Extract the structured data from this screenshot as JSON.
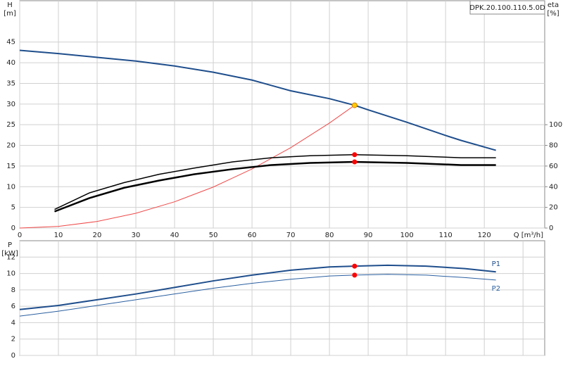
{
  "chart_data": [
    {
      "type": "line",
      "model": "DPK.20.100.110.5.0D",
      "ylabel": "H",
      "yunit": "[m]",
      "y2label": "eta",
      "y2unit": "[%]",
      "xlabel": "Q [m³/h]",
      "xlim": [
        0,
        135.6
      ],
      "xticks": [
        0,
        10,
        20,
        30,
        40,
        50,
        60,
        70,
        80,
        90,
        100,
        110,
        120
      ],
      "xtick_labels": true,
      "ylim": [
        0,
        55
      ],
      "yticks": [
        0,
        5,
        10,
        15,
        20,
        25,
        30,
        35,
        40,
        45
      ],
      "y2lim": [
        0,
        220
      ],
      "y2ticks": [
        0,
        20,
        40,
        60,
        80,
        100
      ],
      "grid": true,
      "series": [
        {
          "style": "line",
          "color": "#1f4e8c",
          "line_width": 2,
          "x": [
            0,
            10,
            20,
            30,
            40,
            50,
            60,
            70,
            80,
            86.5,
            90,
            100,
            110,
            114,
            123
          ],
          "values": [
            43,
            42.2,
            41.3,
            40.4,
            39.2,
            37.7,
            35.8,
            33.2,
            31.3,
            29.7,
            28.6,
            25.6,
            22.4,
            21.2,
            18.8
          ]
        },
        {
          "style": "line",
          "color": "#f04a4a",
          "line_width": 1,
          "x": [
            0,
            10,
            20,
            30,
            40,
            50,
            60,
            70,
            80,
            86.5
          ],
          "values": [
            0,
            0.4,
            1.59,
            3.57,
            6.35,
            9.92,
            14.29,
            19.45,
            25.41,
            29.7
          ]
        },
        {
          "style": "line",
          "axis": "y2",
          "color": "#000000",
          "line_width": 1.5,
          "x": [
            9,
            18,
            27,
            36,
            45,
            55,
            65,
            75,
            86.5,
            100,
            114,
            123
          ],
          "values": [
            18,
            34,
            44,
            52,
            58,
            64,
            68,
            70,
            71,
            70,
            68,
            68
          ]
        },
        {
          "style": "line",
          "axis": "y2",
          "color": "#000000",
          "line_width": 2.5,
          "x": [
            9,
            18,
            27,
            36,
            45,
            55,
            65,
            75,
            86.5,
            100,
            114,
            123
          ],
          "values": [
            16,
            29,
            39,
            46,
            52,
            57,
            61,
            63,
            64,
            63,
            61,
            61
          ]
        },
        {
          "style": "dot",
          "axis": "y2",
          "color": "#ff0000",
          "x": [
            86.5,
            86.5
          ],
          "values": [
            71,
            64
          ]
        },
        {
          "style": "dot",
          "color": "#ffcc00",
          "x": [
            86.5
          ],
          "values": [
            29.7
          ]
        }
      ]
    },
    {
      "type": "line",
      "ylabel": "P",
      "yunit": "[kW]",
      "xlim": [
        0,
        135.6
      ],
      "xticks": [
        0,
        10,
        20,
        30,
        40,
        50,
        60,
        70,
        80,
        90,
        100,
        110,
        120,
        130
      ],
      "xtick_labels": false,
      "ylim": [
        0,
        14
      ],
      "yticks": [
        0,
        2,
        4,
        6,
        8,
        10,
        12
      ],
      "grid": true,
      "series": [
        {
          "name": "P1",
          "label_position": "above",
          "style": "line",
          "color": "#1f4e8c",
          "line_width": 2,
          "x": [
            0,
            10,
            20,
            30,
            40,
            50,
            60,
            70,
            80,
            86.5,
            95,
            105,
            115,
            123
          ],
          "values": [
            5.6,
            6.1,
            6.8,
            7.5,
            8.3,
            9.1,
            9.8,
            10.4,
            10.8,
            10.9,
            11.0,
            10.9,
            10.6,
            10.2
          ]
        },
        {
          "name": "P2",
          "label_position": "below",
          "style": "line",
          "color": "#2a5fa0",
          "line_width": 1,
          "x": [
            0,
            10,
            20,
            30,
            40,
            50,
            60,
            70,
            80,
            86.5,
            95,
            105,
            115,
            123
          ],
          "values": [
            4.8,
            5.4,
            6.1,
            6.8,
            7.5,
            8.2,
            8.8,
            9.3,
            9.7,
            9.8,
            9.9,
            9.8,
            9.5,
            9.2
          ]
        },
        {
          "style": "dot",
          "color": "#ff0000",
          "x": [
            86.5,
            86.5
          ],
          "values": [
            10.9,
            9.8
          ]
        }
      ]
    }
  ]
}
